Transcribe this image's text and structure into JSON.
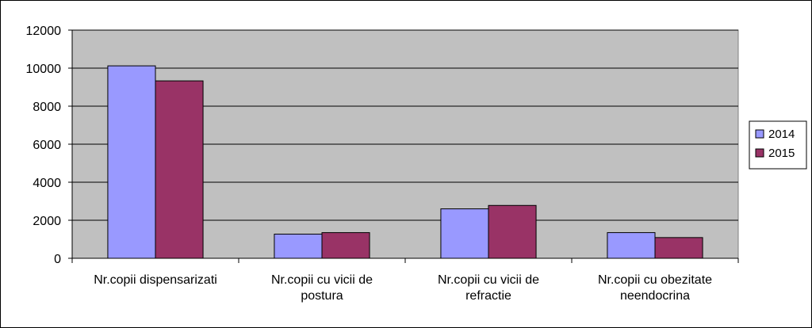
{
  "chart_data": {
    "type": "bar",
    "title": "",
    "xlabel": "",
    "ylabel": "",
    "categories": [
      [
        "Nr.copii dispensarizati"
      ],
      [
        "Nr.copii cu vicii de",
        "postura"
      ],
      [
        "Nr.copii cu vicii de",
        "refractie"
      ],
      [
        "Nr.copii cu obezitate",
        "neendocrina"
      ]
    ],
    "series": [
      {
        "name": "2014",
        "color": "#9999ff",
        "values": [
          10120,
          1270,
          2600,
          1350
        ]
      },
      {
        "name": "2015",
        "color": "#993366",
        "values": [
          9330,
          1350,
          2780,
          1090
        ]
      }
    ],
    "ylim": [
      0,
      12000
    ],
    "yticks": [
      0,
      2000,
      4000,
      6000,
      8000,
      10000,
      12000
    ],
    "grid": true,
    "plot_background": "#c0c0c0",
    "legend_position": "right"
  }
}
